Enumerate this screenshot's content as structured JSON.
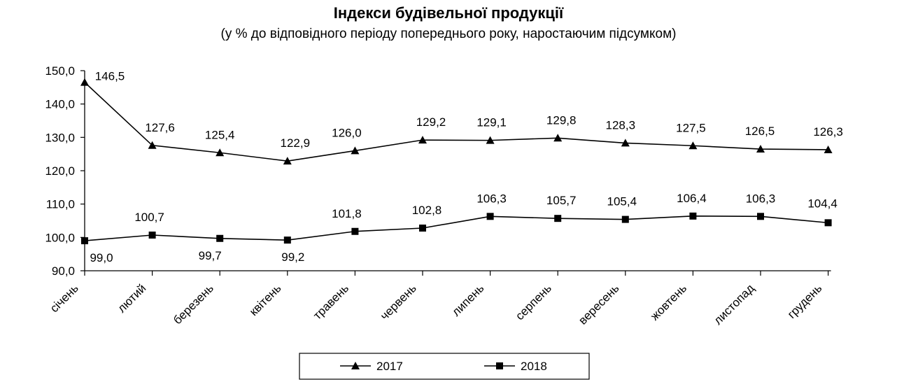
{
  "chart_data": {
    "type": "line",
    "title": "Індекси будівельної продукції",
    "subtitle": "(у % до відповідного періоду попереднього року, наростаючим підсумком)",
    "xlabel": "",
    "ylabel": "",
    "ylim": [
      90,
      150
    ],
    "y_ticks": [
      "90,0",
      "100,0",
      "110,0",
      "120,0",
      "130,0",
      "140,0",
      "150,0"
    ],
    "grid": false,
    "legend_position": "bottom",
    "categories": [
      "січень",
      "лютий",
      "березень",
      "квітень",
      "травень",
      "червень",
      "липень",
      "серпень",
      "вересень",
      "жовтень",
      "листопад",
      "грудень"
    ],
    "series": [
      {
        "name": "2017",
        "marker": "triangle",
        "color": "#000000",
        "values": [
          146.5,
          127.6,
          125.4,
          122.9,
          126.0,
          129.2,
          129.1,
          129.8,
          128.3,
          127.5,
          126.5,
          126.3
        ],
        "labels": [
          "146,5",
          "127,6",
          "125,4",
          "122,9",
          "126,0",
          "129,2",
          "129,1",
          "129,8",
          "128,3",
          "127,5",
          "126,5",
          "126,3"
        ]
      },
      {
        "name": "2018",
        "marker": "square",
        "color": "#000000",
        "values": [
          99.0,
          100.7,
          99.7,
          99.2,
          101.8,
          102.8,
          106.3,
          105.7,
          105.4,
          106.4,
          106.3,
          104.4
        ],
        "labels": [
          "99,0",
          "100,7",
          "99,7",
          "99,2",
          "101,8",
          "102,8",
          "106,3",
          "105,7",
          "105,4",
          "106,4",
          "106,3",
          "104,4"
        ]
      }
    ]
  }
}
